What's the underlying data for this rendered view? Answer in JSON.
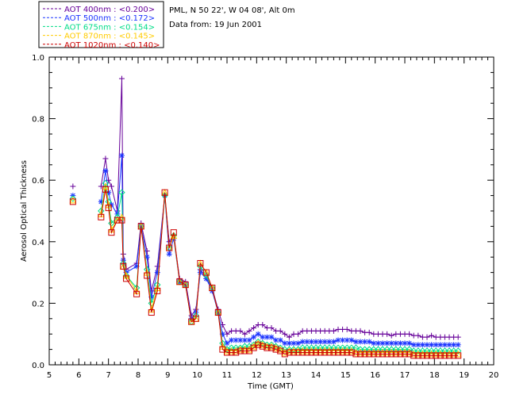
{
  "header": {
    "location": "PML, N 50 22', W 04 08', Alt 0m",
    "date_line": "Data from: 19 Jun 2001"
  },
  "chart_data": {
    "type": "line",
    "title": "",
    "xlabel": "Time (GMT)",
    "ylabel": "Aerosol Optical Thickness",
    "xlim": [
      5,
      20
    ],
    "ylim": [
      0.0,
      1.0
    ],
    "x_ticks": [
      5,
      6,
      7,
      8,
      9,
      10,
      11,
      12,
      13,
      14,
      15,
      16,
      17,
      18,
      19,
      20
    ],
    "y_ticks": [
      0.0,
      0.2,
      0.4,
      0.6,
      0.8,
      1.0
    ],
    "x_tick_labels": [
      "5",
      "6",
      "7",
      "8",
      "9",
      "10",
      "11",
      "12",
      "13",
      "14",
      "15",
      "16",
      "17",
      "18",
      "19",
      "20"
    ],
    "y_tick_labels": [
      "0.0",
      "0.2",
      "0.4",
      "0.6",
      "0.8",
      "1.0"
    ],
    "grid": false,
    "legend_position": "top-left outside",
    "series": [
      {
        "name": "AOT  400nm : <0.200>",
        "color": "#660099",
        "marker": "plus",
        "x": [
          5.8,
          6.75,
          6.9,
          7.0,
          7.1,
          7.3,
          7.45,
          7.5,
          7.6,
          7.95,
          8.1,
          8.3,
          8.45,
          8.65,
          8.9,
          9.05,
          9.2,
          9.4,
          9.6,
          9.8,
          9.95,
          10.1,
          10.3,
          10.5,
          10.7,
          10.85,
          11.0,
          11.15,
          11.3,
          11.45,
          11.6,
          11.75,
          11.9,
          12.05,
          12.2,
          12.35,
          12.5,
          12.65,
          12.8,
          12.95,
          13.1,
          13.25,
          13.4,
          13.55,
          13.7,
          13.85,
          14.0,
          14.15,
          14.3,
          14.45,
          14.6,
          14.75,
          14.9,
          15.05,
          15.2,
          15.35,
          15.5,
          15.65,
          15.8,
          15.95,
          16.1,
          16.25,
          16.4,
          16.55,
          16.7,
          16.85,
          17.0,
          17.15,
          17.3,
          17.45,
          17.6,
          17.75,
          17.9,
          18.05,
          18.2,
          18.35,
          18.5,
          18.65,
          18.8
        ],
        "values": [
          0.58,
          0.58,
          0.67,
          0.6,
          0.58,
          0.5,
          0.93,
          0.36,
          0.31,
          0.33,
          0.46,
          0.37,
          0.24,
          0.32,
          0.55,
          0.4,
          0.42,
          0.28,
          0.27,
          0.16,
          0.18,
          0.31,
          0.28,
          0.25,
          0.18,
          0.13,
          0.1,
          0.11,
          0.11,
          0.11,
          0.1,
          0.11,
          0.12,
          0.13,
          0.13,
          0.12,
          0.12,
          0.11,
          0.11,
          0.1,
          0.09,
          0.1,
          0.1,
          0.11,
          0.11,
          0.11,
          0.11,
          0.11,
          0.11,
          0.11,
          0.11,
          0.115,
          0.115,
          0.115,
          0.11,
          0.11,
          0.11,
          0.105,
          0.105,
          0.1,
          0.1,
          0.1,
          0.1,
          0.095,
          0.1,
          0.1,
          0.1,
          0.1,
          0.095,
          0.095,
          0.09,
          0.09,
          0.095,
          0.09,
          0.09,
          0.09,
          0.09,
          0.09,
          0.09
        ]
      },
      {
        "name": "AOT  500nm : <0.172>",
        "color": "#1a33ff",
        "marker": "star",
        "x": [
          5.8,
          6.75,
          6.9,
          7.0,
          7.1,
          7.3,
          7.45,
          7.5,
          7.6,
          7.95,
          8.1,
          8.3,
          8.45,
          8.65,
          8.9,
          9.05,
          9.2,
          9.4,
          9.6,
          9.8,
          9.95,
          10.1,
          10.3,
          10.5,
          10.7,
          10.85,
          11.0,
          11.15,
          11.3,
          11.45,
          11.6,
          11.75,
          11.9,
          12.05,
          12.2,
          12.35,
          12.5,
          12.65,
          12.8,
          12.95,
          13.1,
          13.25,
          13.4,
          13.55,
          13.7,
          13.85,
          14.0,
          14.15,
          14.3,
          14.45,
          14.6,
          14.75,
          14.9,
          15.05,
          15.2,
          15.35,
          15.5,
          15.65,
          15.8,
          15.95,
          16.1,
          16.25,
          16.4,
          16.55,
          16.7,
          16.85,
          17.0,
          17.15,
          17.3,
          17.45,
          17.6,
          17.75,
          17.9,
          18.05,
          18.2,
          18.35,
          18.5,
          18.65,
          18.8
        ],
        "values": [
          0.55,
          0.53,
          0.63,
          0.56,
          0.52,
          0.49,
          0.68,
          0.34,
          0.3,
          0.32,
          0.45,
          0.35,
          0.22,
          0.3,
          0.55,
          0.36,
          0.41,
          0.27,
          0.26,
          0.15,
          0.17,
          0.3,
          0.28,
          0.24,
          0.17,
          0.1,
          0.07,
          0.08,
          0.08,
          0.08,
          0.08,
          0.08,
          0.09,
          0.1,
          0.09,
          0.09,
          0.09,
          0.08,
          0.08,
          0.07,
          0.07,
          0.07,
          0.07,
          0.075,
          0.075,
          0.075,
          0.075,
          0.075,
          0.075,
          0.075,
          0.075,
          0.08,
          0.08,
          0.08,
          0.08,
          0.075,
          0.075,
          0.075,
          0.075,
          0.07,
          0.07,
          0.07,
          0.07,
          0.07,
          0.07,
          0.07,
          0.07,
          0.07,
          0.065,
          0.065,
          0.065,
          0.065,
          0.065,
          0.065,
          0.065,
          0.065,
          0.065,
          0.065,
          0.065
        ]
      },
      {
        "name": "AOT  675nm : <0.154>",
        "color": "#00dd88",
        "marker": "diamond",
        "x": [
          5.8,
          6.75,
          6.9,
          7.0,
          7.1,
          7.3,
          7.45,
          7.5,
          7.6,
          7.95,
          8.1,
          8.3,
          8.45,
          8.65,
          8.9,
          9.05,
          9.2,
          9.4,
          9.6,
          9.8,
          9.95,
          10.1,
          10.3,
          10.5,
          10.7,
          10.85,
          11.0,
          11.15,
          11.3,
          11.45,
          11.6,
          11.75,
          11.9,
          12.05,
          12.2,
          12.35,
          12.5,
          12.65,
          12.8,
          12.95,
          13.1,
          13.25,
          13.4,
          13.55,
          13.7,
          13.85,
          14.0,
          14.15,
          14.3,
          14.45,
          14.6,
          14.75,
          14.9,
          15.05,
          15.2,
          15.35,
          15.5,
          15.65,
          15.8,
          15.95,
          16.1,
          16.25,
          16.4,
          16.55,
          16.7,
          16.85,
          17.0,
          17.15,
          17.3,
          17.45,
          17.6,
          17.75,
          17.9,
          18.05,
          18.2,
          18.35,
          18.5,
          18.65,
          18.8
        ],
        "values": [
          0.54,
          0.5,
          0.59,
          0.53,
          0.46,
          0.48,
          0.56,
          0.33,
          0.29,
          0.25,
          0.45,
          0.31,
          0.2,
          0.26,
          0.55,
          0.38,
          0.42,
          0.27,
          0.26,
          0.14,
          0.16,
          0.32,
          0.29,
          0.25,
          0.17,
          0.07,
          0.05,
          0.055,
          0.055,
          0.055,
          0.06,
          0.06,
          0.065,
          0.075,
          0.07,
          0.065,
          0.065,
          0.06,
          0.055,
          0.05,
          0.05,
          0.05,
          0.05,
          0.055,
          0.055,
          0.055,
          0.055,
          0.055,
          0.055,
          0.055,
          0.055,
          0.055,
          0.055,
          0.055,
          0.055,
          0.055,
          0.05,
          0.05,
          0.05,
          0.05,
          0.05,
          0.05,
          0.05,
          0.05,
          0.05,
          0.05,
          0.05,
          0.05,
          0.045,
          0.045,
          0.045,
          0.045,
          0.045,
          0.045,
          0.045,
          0.045,
          0.045,
          0.045,
          0.045
        ]
      },
      {
        "name": "AOT  870nm : <0.145>",
        "color": "#ffcc00",
        "marker": "triangle",
        "x": [
          5.8,
          6.75,
          6.9,
          7.0,
          7.1,
          7.3,
          7.45,
          7.5,
          7.6,
          7.95,
          8.1,
          8.3,
          8.45,
          8.65,
          8.9,
          9.05,
          9.2,
          9.4,
          9.6,
          9.8,
          9.95,
          10.1,
          10.3,
          10.5,
          10.7,
          10.85,
          11.0,
          11.15,
          11.3,
          11.45,
          11.6,
          11.75,
          11.9,
          12.05,
          12.2,
          12.35,
          12.5,
          12.65,
          12.8,
          12.95,
          13.1,
          13.25,
          13.4,
          13.55,
          13.7,
          13.85,
          14.0,
          14.15,
          14.3,
          14.45,
          14.6,
          14.75,
          14.9,
          15.05,
          15.2,
          15.35,
          15.5,
          15.65,
          15.8,
          15.95,
          16.1,
          16.25,
          16.4,
          16.55,
          16.7,
          16.85,
          17.0,
          17.15,
          17.3,
          17.45,
          17.6,
          17.75,
          17.9,
          18.05,
          18.2,
          18.35,
          18.5,
          18.65,
          18.8
        ],
        "values": [
          0.535,
          0.49,
          0.58,
          0.52,
          0.44,
          0.47,
          0.48,
          0.32,
          0.29,
          0.24,
          0.45,
          0.3,
          0.18,
          0.25,
          0.56,
          0.38,
          0.42,
          0.27,
          0.26,
          0.14,
          0.15,
          0.33,
          0.3,
          0.25,
          0.17,
          0.06,
          0.045,
          0.045,
          0.045,
          0.05,
          0.05,
          0.05,
          0.06,
          0.07,
          0.065,
          0.06,
          0.06,
          0.055,
          0.05,
          0.04,
          0.045,
          0.045,
          0.045,
          0.045,
          0.045,
          0.045,
          0.045,
          0.045,
          0.045,
          0.045,
          0.045,
          0.045,
          0.045,
          0.045,
          0.045,
          0.04,
          0.04,
          0.04,
          0.04,
          0.04,
          0.04,
          0.04,
          0.04,
          0.04,
          0.04,
          0.04,
          0.04,
          0.04,
          0.035,
          0.035,
          0.035,
          0.035,
          0.035,
          0.035,
          0.035,
          0.035,
          0.035,
          0.035,
          0.035
        ]
      },
      {
        "name": "AOT 1020nm : <0.140>",
        "color": "#cc0000",
        "marker": "square",
        "x": [
          5.8,
          6.75,
          6.9,
          7.0,
          7.1,
          7.3,
          7.45,
          7.5,
          7.6,
          7.95,
          8.1,
          8.3,
          8.45,
          8.65,
          8.9,
          9.05,
          9.2,
          9.4,
          9.6,
          9.8,
          9.95,
          10.1,
          10.3,
          10.5,
          10.7,
          10.85,
          11.0,
          11.15,
          11.3,
          11.45,
          11.6,
          11.75,
          11.9,
          12.05,
          12.2,
          12.35,
          12.5,
          12.65,
          12.8,
          12.95,
          13.1,
          13.25,
          13.4,
          13.55,
          13.7,
          13.85,
          14.0,
          14.15,
          14.3,
          14.45,
          14.6,
          14.75,
          14.9,
          15.05,
          15.2,
          15.35,
          15.5,
          15.65,
          15.8,
          15.95,
          16.1,
          16.25,
          16.4,
          16.55,
          16.7,
          16.85,
          17.0,
          17.15,
          17.3,
          17.45,
          17.6,
          17.75,
          17.9,
          18.05,
          18.2,
          18.35,
          18.5,
          18.65,
          18.8
        ],
        "values": [
          0.53,
          0.48,
          0.57,
          0.51,
          0.43,
          0.47,
          0.47,
          0.32,
          0.28,
          0.23,
          0.45,
          0.29,
          0.17,
          0.24,
          0.56,
          0.38,
          0.43,
          0.27,
          0.26,
          0.14,
          0.15,
          0.33,
          0.3,
          0.25,
          0.17,
          0.05,
          0.04,
          0.04,
          0.04,
          0.045,
          0.045,
          0.045,
          0.055,
          0.065,
          0.06,
          0.055,
          0.055,
          0.05,
          0.045,
          0.035,
          0.04,
          0.04,
          0.04,
          0.04,
          0.04,
          0.04,
          0.04,
          0.04,
          0.04,
          0.04,
          0.04,
          0.04,
          0.04,
          0.04,
          0.04,
          0.035,
          0.035,
          0.035,
          0.035,
          0.035,
          0.035,
          0.035,
          0.035,
          0.035,
          0.035,
          0.035,
          0.035,
          0.035,
          0.03,
          0.03,
          0.03,
          0.03,
          0.03,
          0.03,
          0.03,
          0.03,
          0.03,
          0.03,
          0.03
        ]
      }
    ]
  }
}
